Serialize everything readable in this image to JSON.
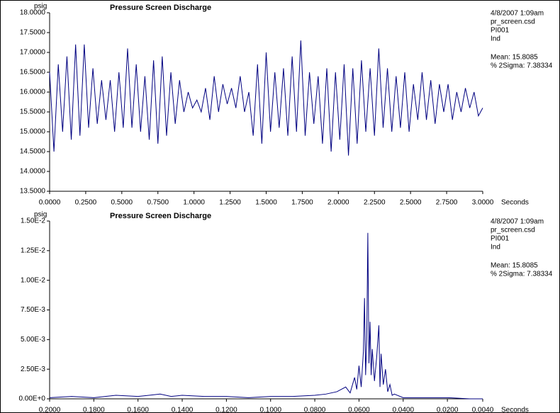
{
  "chart_data": [
    {
      "type": "line",
      "title": "Pressure Screen Discharge",
      "y_label": "psig",
      "x_label": "Seconds",
      "annotations": [
        "4/8/2007  1:09am",
        "pr_screen.csd",
        "PI001",
        "Ind",
        "Mean: 15.8085",
        "% 2Sigma: 7.38334"
      ],
      "color": "#000080",
      "x": [
        0,
        0.03,
        0.06,
        0.09,
        0.12,
        0.15,
        0.18,
        0.21,
        0.24,
        0.27,
        0.3,
        0.33,
        0.36,
        0.39,
        0.42,
        0.45,
        0.48,
        0.51,
        0.54,
        0.57,
        0.6,
        0.63,
        0.66,
        0.69,
        0.72,
        0.75,
        0.78,
        0.81,
        0.84,
        0.87,
        0.9,
        0.93,
        0.96,
        0.99,
        1.02,
        1.05,
        1.08,
        1.11,
        1.14,
        1.17,
        1.2,
        1.23,
        1.26,
        1.29,
        1.32,
        1.35,
        1.38,
        1.41,
        1.44,
        1.47,
        1.5,
        1.53,
        1.56,
        1.59,
        1.62,
        1.65,
        1.68,
        1.71,
        1.74,
        1.77,
        1.8,
        1.83,
        1.86,
        1.89,
        1.92,
        1.95,
        1.98,
        2.01,
        2.04,
        2.07,
        2.1,
        2.13,
        2.16,
        2.19,
        2.22,
        2.25,
        2.28,
        2.31,
        2.34,
        2.37,
        2.4,
        2.43,
        2.46,
        2.49,
        2.52,
        2.55,
        2.58,
        2.61,
        2.64,
        2.67,
        2.7,
        2.73,
        2.76,
        2.79,
        2.82,
        2.85,
        2.88,
        2.91,
        2.94,
        2.97,
        3.0
      ],
      "values": [
        16.5,
        14.5,
        16.7,
        15.0,
        16.9,
        14.8,
        17.2,
        14.9,
        17.2,
        15.1,
        16.6,
        15.2,
        16.3,
        15.3,
        16.3,
        15.0,
        16.5,
        15.1,
        17.1,
        15.1,
        16.7,
        15.0,
        16.4,
        14.8,
        16.8,
        14.7,
        16.9,
        14.9,
        16.5,
        15.2,
        16.3,
        15.5,
        16.0,
        15.6,
        15.8,
        15.5,
        16.1,
        15.3,
        16.4,
        15.5,
        16.2,
        15.7,
        16.1,
        15.6,
        16.4,
        15.5,
        16.0,
        14.9,
        16.7,
        14.7,
        17.0,
        15.0,
        16.5,
        15.1,
        16.6,
        14.9,
        16.9,
        15.0,
        17.3,
        14.9,
        16.5,
        15.2,
        16.4,
        14.7,
        16.6,
        14.5,
        16.5,
        14.8,
        16.7,
        14.4,
        16.6,
        14.7,
        16.8,
        15.0,
        16.6,
        14.9,
        17.1,
        15.1,
        16.6,
        15.0,
        16.4,
        15.1,
        16.5,
        15.0,
        16.2,
        15.3,
        16.5,
        15.3,
        16.3,
        15.2,
        16.2,
        15.5,
        16.2,
        15.3,
        16.0,
        15.5,
        16.1,
        15.6,
        16.0,
        15.4,
        15.6
      ],
      "xlim": [
        0,
        3
      ],
      "ylim": [
        13.5,
        18
      ],
      "xticks": [
        {
          "value": 0,
          "label": "0.0000"
        },
        {
          "value": 0.25,
          "label": "0.2500"
        },
        {
          "value": 0.5,
          "label": "0.5000"
        },
        {
          "value": 0.75,
          "label": "0.7500"
        },
        {
          "value": 1,
          "label": "1.0000"
        },
        {
          "value": 1.25,
          "label": "1.2500"
        },
        {
          "value": 1.5,
          "label": "1.5000"
        },
        {
          "value": 1.75,
          "label": "1.7500"
        },
        {
          "value": 2,
          "label": "2.0000"
        },
        {
          "value": 2.25,
          "label": "2.2500"
        },
        {
          "value": 2.5,
          "label": "2.5000"
        },
        {
          "value": 2.75,
          "label": "2.7500"
        },
        {
          "value": 3,
          "label": "3.0000"
        }
      ],
      "yticks": [
        {
          "value": 13.5,
          "label": "13.5000"
        },
        {
          "value": 14,
          "label": "14.0000"
        },
        {
          "value": 14.5,
          "label": "14.5000"
        },
        {
          "value": 15,
          "label": "15.0000"
        },
        {
          "value": 15.5,
          "label": "15.5000"
        },
        {
          "value": 16,
          "label": "16.0000"
        },
        {
          "value": 16.5,
          "label": "16.5000"
        },
        {
          "value": 17,
          "label": "17.0000"
        },
        {
          "value": 17.5,
          "label": "17.5000"
        },
        {
          "value": 18,
          "label": "18.0000"
        }
      ]
    },
    {
      "type": "line",
      "title": "Pressure Screen Discharge",
      "y_label": "psig",
      "x_label": "Seconds",
      "annotations": [
        "4/8/2007  1:09am",
        "pr_screen.csd",
        "PI001",
        "Ind",
        "Mean: 15.8085",
        "% 2Sigma: 7.38334"
      ],
      "color": "#000080",
      "x": [
        0.2,
        0.19,
        0.18,
        0.17,
        0.16,
        0.155,
        0.15,
        0.145,
        0.14,
        0.13,
        0.12,
        0.11,
        0.1,
        0.09,
        0.08,
        0.075,
        0.07,
        0.066,
        0.064,
        0.062,
        0.061,
        0.06,
        0.059,
        0.058,
        0.0575,
        0.057,
        0.0565,
        0.056,
        0.0555,
        0.055,
        0.0545,
        0.054,
        0.053,
        0.052,
        0.051,
        0.0505,
        0.05,
        0.049,
        0.048,
        0.047,
        0.046,
        0.045,
        0.044,
        0.04,
        0.03,
        0.02,
        0.01,
        0.004
      ],
      "values": [
        0.0001,
        0.0002,
        0.0001,
        0.0003,
        0.0002,
        0.0003,
        0.0004,
        0.0002,
        0.0003,
        0.0002,
        0.0002,
        0.0001,
        0.0002,
        0.0002,
        0.0003,
        0.0004,
        0.0006,
        0.001,
        0.0005,
        0.0018,
        0.0008,
        0.0028,
        0.001,
        0.004,
        0.0085,
        0.002,
        0.005,
        0.014,
        0.003,
        0.0065,
        0.002,
        0.0042,
        0.0015,
        0.0035,
        0.0062,
        0.001,
        0.0038,
        0.0012,
        0.0025,
        0.0006,
        0.0012,
        0.0003,
        0.0004,
        0.0001,
        0.0001,
        0.0001,
        0,
        0
      ],
      "xlim": [
        0.2,
        0.004
      ],
      "ylim": [
        0,
        0.015
      ],
      "xticks": [
        {
          "value": 0.2,
          "label": "0.2000"
        },
        {
          "value": 0.18,
          "label": "0.1800"
        },
        {
          "value": 0.16,
          "label": "0.1600"
        },
        {
          "value": 0.14,
          "label": "0.1400"
        },
        {
          "value": 0.12,
          "label": "0.1200"
        },
        {
          "value": 0.1,
          "label": "0.1000"
        },
        {
          "value": 0.08,
          "label": "0.0800"
        },
        {
          "value": 0.06,
          "label": "0.0600"
        },
        {
          "value": 0.04,
          "label": "0.0400"
        },
        {
          "value": 0.02,
          "label": "0.0200"
        },
        {
          "value": 0.004,
          "label": "0.0040"
        }
      ],
      "yticks": [
        {
          "value": 0,
          "label": "0.00E+0"
        },
        {
          "value": 0.0025,
          "label": "2.50E-3"
        },
        {
          "value": 0.005,
          "label": "5.00E-3"
        },
        {
          "value": 0.0075,
          "label": "7.50E-3"
        },
        {
          "value": 0.01,
          "label": "1.00E-2"
        },
        {
          "value": 0.0125,
          "label": "1.25E-2"
        },
        {
          "value": 0.015,
          "label": "1.50E-2"
        }
      ]
    }
  ]
}
